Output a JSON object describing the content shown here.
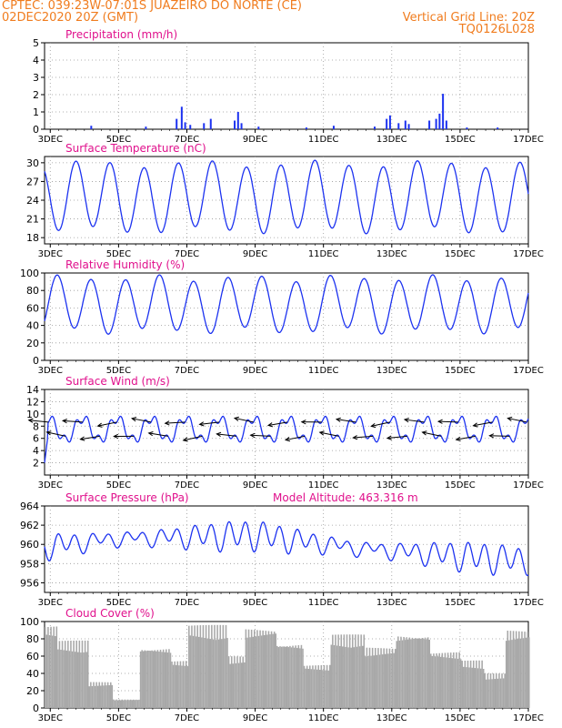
{
  "header": {
    "line1_left": "CPTEC:  039:23W-07:01S  JUAZEIRO DO NORTE (CE)",
    "line2_left": "02DEC2020 20Z (GMT)",
    "line2_right": "Vertical Grid Line: 20Z",
    "line3_right": "TQ0126L028"
  },
  "colors": {
    "header": "#f07c1e",
    "title": "#e0108c",
    "series": "#1c32f0",
    "cloud": "#a8a8a8",
    "wind_arrow": "#000000"
  },
  "chart_data": [
    {
      "type": "bar",
      "title": "Precipitation (mm/h)",
      "ylim": [
        0,
        5
      ],
      "yticks": [
        "0",
        "1",
        "2",
        "3",
        "4",
        "5"
      ],
      "xticks": [
        "3DEC",
        "5DEC",
        "7DEC",
        "9DEC",
        "11DEC",
        "13DEC",
        "15DEC",
        "17DEC"
      ],
      "x_domain_days": [
        2.833,
        17.0
      ],
      "spikes": [
        {
          "day": 4.2,
          "value": 0.2
        },
        {
          "day": 5.8,
          "value": 0.15
        },
        {
          "day": 6.7,
          "value": 0.6
        },
        {
          "day": 6.85,
          "value": 1.3
        },
        {
          "day": 6.95,
          "value": 0.4
        },
        {
          "day": 7.1,
          "value": 0.25
        },
        {
          "day": 7.5,
          "value": 0.35
        },
        {
          "day": 7.7,
          "value": 0.6
        },
        {
          "day": 8.4,
          "value": 0.5
        },
        {
          "day": 8.5,
          "value": 1.0
        },
        {
          "day": 8.6,
          "value": 0.35
        },
        {
          "day": 9.1,
          "value": 0.15
        },
        {
          "day": 10.5,
          "value": 0.1
        },
        {
          "day": 11.3,
          "value": 0.2
        },
        {
          "day": 12.5,
          "value": 0.15
        },
        {
          "day": 12.85,
          "value": 0.6
        },
        {
          "day": 12.95,
          "value": 0.8
        },
        {
          "day": 13.2,
          "value": 0.35
        },
        {
          "day": 13.4,
          "value": 0.5
        },
        {
          "day": 13.5,
          "value": 0.3
        },
        {
          "day": 14.1,
          "value": 0.5
        },
        {
          "day": 14.3,
          "value": 0.6
        },
        {
          "day": 14.4,
          "value": 0.9
        },
        {
          "day": 14.5,
          "value": 2.05
        },
        {
          "day": 14.6,
          "value": 0.5
        },
        {
          "day": 15.2,
          "value": 0.1
        },
        {
          "day": 16.1,
          "value": 0.1
        }
      ]
    },
    {
      "type": "line",
      "title": "Surface Temperature (nC)",
      "ylim": [
        17,
        31
      ],
      "yticks": [
        "18",
        "21",
        "24",
        "27",
        "30"
      ],
      "xticks": [
        "3DEC",
        "5DEC",
        "7DEC",
        "9DEC",
        "11DEC",
        "13DEC",
        "15DEC",
        "17DEC"
      ],
      "x_domain_days": [
        2.833,
        17.0
      ],
      "mean": 24.5,
      "amplitude": 5.3,
      "phase_peak_day": 3.75
    },
    {
      "type": "line",
      "title": "Relative Humidity (%)",
      "ylim": [
        0,
        100
      ],
      "yticks": [
        "0",
        "20",
        "40",
        "60",
        "80",
        "100"
      ],
      "xticks": [
        "3DEC",
        "5DEC",
        "7DEC",
        "9DEC",
        "11DEC",
        "13DEC",
        "15DEC",
        "17DEC"
      ],
      "x_domain_days": [
        2.833,
        17.0
      ],
      "mean": 64,
      "amplitude": 30,
      "phase_peak_day": 3.2
    },
    {
      "type": "line",
      "title": "Surface Wind (m/s)",
      "ylim": [
        0,
        14
      ],
      "yticks": [
        "2",
        "4",
        "6",
        "8",
        "10",
        "12",
        "14"
      ],
      "xticks": [
        "3DEC",
        "5DEC",
        "7DEC",
        "9DEC",
        "11DEC",
        "13DEC",
        "15DEC",
        "17DEC"
      ],
      "x_domain_days": [
        2.833,
        17.0
      ],
      "mean": 7.5,
      "amplitude": 1.8
    },
    {
      "type": "line",
      "title": "Surface Pressure (hPa)",
      "annotation": "Model Altitude: 463.316  m",
      "ylim": [
        955,
        964
      ],
      "yticks": [
        "956",
        "958",
        "960",
        "962",
        "964"
      ],
      "xticks": [
        "3DEC",
        "5DEC",
        "7DEC",
        "9DEC",
        "11DEC",
        "13DEC",
        "15DEC",
        "17DEC"
      ],
      "x_domain_days": [
        2.833,
        17.0
      ],
      "trend": [
        [
          2.833,
          959.8
        ],
        [
          5.0,
          960.6
        ],
        [
          9.0,
          961.0
        ],
        [
          12.0,
          959.6
        ],
        [
          17.0,
          958.3
        ]
      ],
      "amplitude": 1.4
    },
    {
      "type": "bar",
      "title": "Cloud Cover (%)",
      "ylim": [
        0,
        100
      ],
      "yticks": [
        "0",
        "20",
        "40",
        "60",
        "80",
        "100"
      ],
      "xticks": [
        "3DEC",
        "5DEC",
        "7DEC",
        "9DEC",
        "11DEC",
        "13DEC",
        "15DEC",
        "17DEC"
      ],
      "x_domain_days": [
        2.833,
        17.0
      ],
      "segments": [
        {
          "start": 2.833,
          "end": 3.2,
          "value": 95
        },
        {
          "start": 3.2,
          "end": 4.1,
          "value": 78
        },
        {
          "start": 4.1,
          "end": 4.8,
          "value": 30
        },
        {
          "start": 4.8,
          "end": 5.6,
          "value": 10
        },
        {
          "start": 5.6,
          "end": 6.5,
          "value": 70
        },
        {
          "start": 6.5,
          "end": 7.0,
          "value": 55
        },
        {
          "start": 7.0,
          "end": 8.2,
          "value": 96
        },
        {
          "start": 8.2,
          "end": 8.7,
          "value": 60
        },
        {
          "start": 8.7,
          "end": 9.6,
          "value": 92
        },
        {
          "start": 9.6,
          "end": 10.4,
          "value": 75
        },
        {
          "start": 10.4,
          "end": 11.2,
          "value": 50
        },
        {
          "start": 11.2,
          "end": 12.2,
          "value": 85
        },
        {
          "start": 12.2,
          "end": 13.1,
          "value": 70
        },
        {
          "start": 13.1,
          "end": 14.1,
          "value": 85
        },
        {
          "start": 14.1,
          "end": 15.0,
          "value": 65
        },
        {
          "start": 15.0,
          "end": 15.7,
          "value": 55
        },
        {
          "start": 15.7,
          "end": 16.3,
          "value": 40
        },
        {
          "start": 16.3,
          "end": 17.0,
          "value": 90
        }
      ]
    }
  ]
}
